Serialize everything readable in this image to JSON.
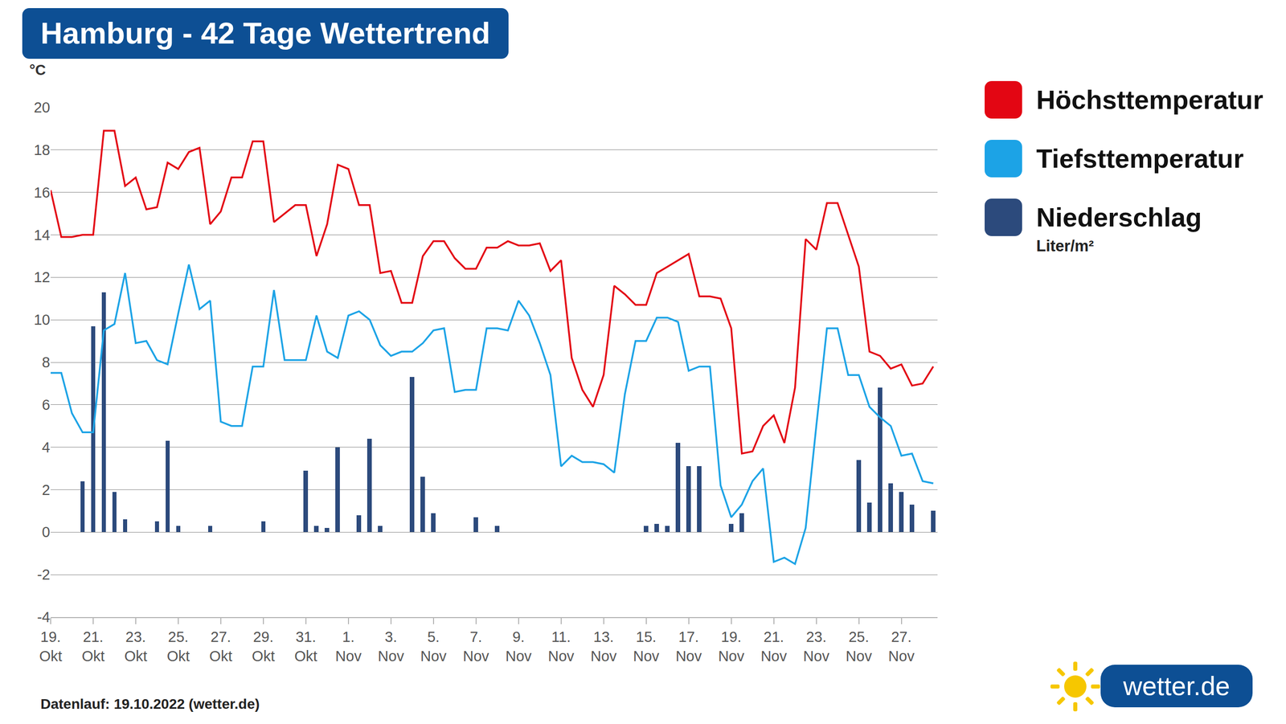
{
  "chart_data": {
    "type": "line",
    "title": "Hamburg - 42 Tage Wettertrend",
    "y_label": "°C",
    "categories": [
      "19. Okt",
      null,
      null,
      null,
      "21. Okt",
      null,
      null,
      null,
      "23. Okt",
      null,
      null,
      null,
      "25. Okt",
      null,
      null,
      null,
      "27. Okt",
      null,
      null,
      null,
      "29. Okt",
      null,
      null,
      null,
      "31. Okt",
      null,
      null,
      null,
      "1. Nov",
      null,
      null,
      null,
      "3. Nov",
      null,
      null,
      null,
      "5. Nov",
      null,
      null,
      null,
      "7. Nov",
      null,
      null,
      null,
      "9. Nov",
      null,
      null,
      null,
      "11. Nov",
      null,
      null,
      null,
      "13. Nov",
      null,
      null,
      null,
      "15. Nov",
      null,
      null,
      null,
      "17. Nov",
      null,
      null,
      null,
      "19. Nov",
      null,
      null,
      null,
      "21. Nov",
      null,
      null,
      null,
      "23. Nov",
      null,
      null,
      null,
      "25. Nov",
      null,
      null,
      null,
      "27. Nov",
      null,
      null,
      null
    ],
    "series": [
      {
        "name": "Niederschlag",
        "type": "bar",
        "color": "#2c4a7c",
        "unit": "Liter/m²",
        "values": [
          0,
          0,
          0,
          2.4,
          9.7,
          11.3,
          1.9,
          0.6,
          0,
          0,
          0.5,
          4.3,
          0.3,
          0,
          0,
          0.3,
          0,
          0,
          0,
          0,
          0.5,
          0,
          0,
          0,
          2.9,
          0.3,
          0.2,
          4.0,
          0,
          0.8,
          4.4,
          0.3,
          0,
          0,
          7.3,
          2.6,
          0.9,
          0,
          0,
          0,
          0.7,
          0,
          0.3,
          0,
          0,
          0,
          0,
          0,
          0,
          0,
          0,
          0,
          0,
          0,
          0,
          0,
          0.3,
          0.4,
          0.3,
          4.2,
          3.1,
          3.1,
          0,
          0,
          0.4,
          0.9,
          0,
          0,
          0,
          0,
          0,
          0,
          0,
          0,
          0,
          0,
          3.4,
          1.4,
          6.8,
          2.3,
          1.9,
          1.3,
          0,
          1.0
        ]
      },
      {
        "name": "Höchsttemperatur",
        "type": "line",
        "color": "#e30613",
        "values": [
          16.1,
          13.9,
          13.9,
          14.0,
          14.0,
          18.9,
          18.9,
          16.3,
          16.7,
          15.2,
          15.3,
          17.4,
          17.1,
          17.9,
          18.1,
          14.5,
          15.1,
          16.7,
          16.7,
          18.4,
          18.4,
          14.6,
          15.0,
          15.4,
          15.4,
          13.0,
          14.5,
          17.3,
          17.1,
          15.4,
          15.4,
          12.2,
          12.3,
          10.8,
          10.8,
          13.0,
          13.7,
          13.7,
          12.9,
          12.4,
          12.4,
          13.4,
          13.4,
          13.7,
          13.5,
          13.5,
          13.6,
          12.3,
          12.8,
          8.2,
          6.7,
          5.9,
          7.4,
          11.6,
          11.2,
          10.7,
          10.7,
          12.2,
          12.5,
          12.8,
          13.1,
          11.1,
          11.1,
          11.0,
          9.6,
          3.7,
          3.8,
          5.0,
          5.5,
          4.2,
          6.8,
          13.8,
          13.3,
          15.5,
          15.5,
          14.0,
          12.5,
          8.5,
          8.3,
          7.7,
          7.9,
          6.9,
          7.0,
          7.8
        ]
      },
      {
        "name": "Tiefsttemperatur",
        "type": "line",
        "color": "#1ca3e6",
        "values": [
          7.5,
          7.5,
          5.6,
          4.7,
          4.7,
          9.5,
          9.8,
          12.2,
          8.9,
          9.0,
          8.1,
          7.9,
          10.3,
          12.6,
          10.5,
          10.9,
          5.2,
          5.0,
          5.0,
          7.8,
          7.8,
          11.4,
          8.1,
          8.1,
          8.1,
          10.2,
          8.5,
          8.2,
          10.2,
          10.4,
          10.0,
          8.8,
          8.3,
          8.5,
          8.5,
          8.9,
          9.5,
          9.6,
          6.6,
          6.7,
          6.7,
          9.6,
          9.6,
          9.5,
          10.9,
          10.2,
          8.9,
          7.4,
          3.1,
          3.6,
          3.3,
          3.3,
          3.2,
          2.8,
          6.5,
          9.0,
          9.0,
          10.1,
          10.1,
          9.9,
          7.6,
          7.8,
          7.8,
          2.2,
          0.7,
          1.3,
          2.4,
          3.0,
          -1.4,
          -1.2,
          -1.5,
          0.2,
          5.0,
          9.6,
          9.6,
          7.4,
          7.4,
          5.9,
          5.4,
          5.0,
          3.6,
          3.7,
          2.4,
          2.3
        ]
      }
    ],
    "ylim": [
      -4,
      20
    ],
    "yticks": [
      -4,
      -2,
      0,
      2,
      4,
      6,
      8,
      10,
      12,
      14,
      16,
      18,
      20
    ],
    "grid": true,
    "legend": "right",
    "source": "Datenlauf: 19.10.2022 (wetter.de)",
    "logo": "wetter.de"
  }
}
